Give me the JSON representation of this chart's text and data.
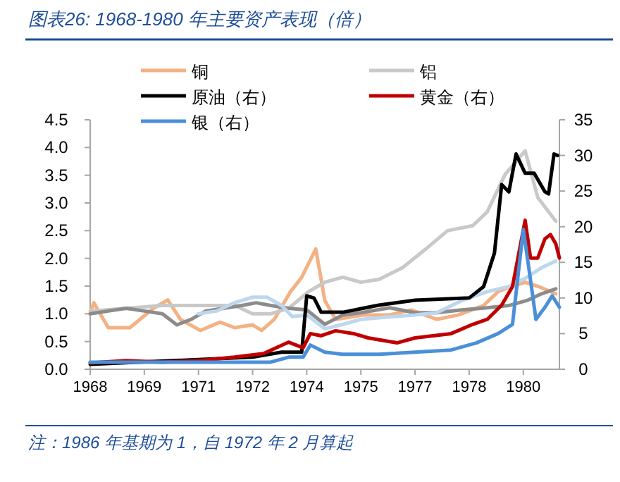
{
  "chart_data": {
    "type": "line",
    "title": "图表26:  1968-1980 年主要资产表现（倍）",
    "xlim": [
      1968,
      1981
    ],
    "xticks": [
      1968,
      {
        "value": 1969.5,
        "label": "1969"
      },
      1971,
      {
        "value": 1972.5,
        "label": "1972"
      },
      1974,
      {
        "value": 1975.5,
        "label": "1975"
      },
      1977,
      {
        "value": 1978.5,
        "label": "1978"
      },
      1980
    ],
    "ylim": [
      0,
      4.5
    ],
    "yticks": [
      {
        "value": 0,
        "label": "0.0"
      },
      0.5,
      {
        "value": 1,
        "label": "1.0"
      },
      1.5,
      {
        "value": 2,
        "label": "2.0"
      },
      2.5,
      {
        "value": 3,
        "label": "3.0"
      },
      3.5,
      {
        "value": 4,
        "label": "4.0"
      },
      4.5
    ],
    "y2lim": [
      0,
      35
    ],
    "y2ticks": [
      0,
      5,
      10,
      15,
      20,
      25,
      30,
      35
    ],
    "legend": "top",
    "series": [
      {
        "name": "铜",
        "color": "#f4b183",
        "x": [
          1968,
          1968.1,
          1968.5,
          1969.1,
          1969.75,
          1970.15,
          1970.5,
          1971.05,
          1971.6,
          1972,
          1972.5,
          1972.75,
          1973.1,
          1973.55,
          1973.86,
          1974.25,
          1974.5,
          1974.8,
          1975.6,
          1976.3,
          1976.9,
          1977.6,
          1978.2,
          1978.9,
          1979.3,
          1979.65,
          1980.05,
          1980.43,
          1980.9
        ],
        "values": [
          1.0,
          1.2,
          0.75,
          0.75,
          1.1,
          1.25,
          0.9,
          0.7,
          0.85,
          0.75,
          0.8,
          0.7,
          0.9,
          1.4,
          1.66,
          2.17,
          1.24,
          0.9,
          0.98,
          0.98,
          1.07,
          0.9,
          0.98,
          1.15,
          1.4,
          1.49,
          1.57,
          1.49,
          1.36
        ]
      },
      {
        "name": "铝",
        "color": "#c9c9c9",
        "x": [
          1968,
          1969,
          1970,
          1971,
          1972,
          1972.5,
          1973,
          1973.5,
          1974.05,
          1974.5,
          1975,
          1975.5,
          1976,
          1976.65,
          1977.3,
          1977.9,
          1978.6,
          1979,
          1979.5,
          1980.05,
          1980.4,
          1980.9
        ],
        "values": [
          1.05,
          1.1,
          1.15,
          1.15,
          1.15,
          1.0,
          1.0,
          1.1,
          1.4,
          1.57,
          1.66,
          1.57,
          1.62,
          1.83,
          2.17,
          2.5,
          2.59,
          2.84,
          3.52,
          3.94,
          3.1,
          2.67
        ]
      },
      {
        "color": "#8c8c8c",
        "x": [
          1968,
          1968.5,
          1969,
          1969.5,
          1970,
          1970.4,
          1970.8,
          1971.2,
          1971.7,
          1972.2,
          1972.6,
          1973,
          1973.5,
          1974,
          1974.5,
          1975,
          1975.5,
          1976.3,
          1977,
          1977.6,
          1978.3,
          1979,
          1979.6,
          1980.1,
          1980.5,
          1980.9
        ],
        "values": [
          1.0,
          1.05,
          1.1,
          1.05,
          1.0,
          0.8,
          0.9,
          1.05,
          1.1,
          1.15,
          1.2,
          1.15,
          1.1,
          1.07,
          0.81,
          0.98,
          1.02,
          1.11,
          1.02,
          1.02,
          1.07,
          1.11,
          1.15,
          1.24,
          1.36,
          1.45
        ]
      },
      {
        "color": "#bdd7ee",
        "x": [
          1971,
          1971.5,
          1972,
          1972.5,
          1972.9,
          1973.3,
          1973.6,
          1974,
          1974.5,
          1975,
          1975.5,
          1976.2,
          1977,
          1977.6,
          1978.3,
          1979,
          1979.6,
          1980.1,
          1980.5,
          1980.9
        ],
        "values": [
          1.0,
          1.05,
          1.2,
          1.3,
          1.3,
          1.15,
          0.95,
          0.98,
          0.73,
          0.81,
          0.9,
          0.94,
          0.98,
          1.02,
          1.24,
          1.4,
          1.49,
          1.66,
          1.83,
          1.95
        ]
      },
      {
        "name": "原油（右）",
        "color": "#000000",
        "axis": "y2",
        "x": [
          1968,
          1972.5,
          1973.3,
          1973.86,
          1974,
          1974.2,
          1974.4,
          1975,
          1976,
          1977,
          1978.5,
          1978.9,
          1979.2,
          1979.4,
          1979.6,
          1979.8,
          1980.05,
          1980.3,
          1980.6,
          1980.7,
          1980.85,
          1980.95
        ],
        "values": [
          0.7,
          1.7,
          2.4,
          2.4,
          10.3,
          10,
          8,
          8,
          9,
          9.7,
          10,
          11.6,
          16.3,
          25.9,
          24.9,
          30.2,
          27.5,
          27.5,
          24.9,
          24.6,
          30.2,
          30
        ]
      },
      {
        "name": "黄金（右）",
        "color": "#c00000",
        "axis": "y2",
        "x": [
          1968,
          1969,
          1970,
          1971,
          1972,
          1972.8,
          1973.5,
          1973.9,
          1974.1,
          1974.4,
          1974.8,
          1975.3,
          1975.7,
          1976.5,
          1977,
          1977.5,
          1978,
          1978.6,
          1979,
          1979.4,
          1979.7,
          1980.05,
          1980.2,
          1980.4,
          1980.6,
          1980.75,
          1980.9,
          1981
        ],
        "values": [
          0.9,
          1.2,
          1.0,
          1.2,
          1.7,
          2.2,
          3.8,
          3.0,
          5.0,
          4.7,
          5.4,
          5.0,
          4.4,
          3.7,
          4.4,
          4.7,
          5.0,
          6.3,
          7.0,
          9.0,
          11.6,
          20.9,
          15.6,
          15.6,
          18.3,
          18.9,
          17.6,
          15.6
        ]
      },
      {
        "name": "银（右）",
        "color": "#4a90d9",
        "axis": "y2",
        "x": [
          1968,
          1970,
          1972,
          1973,
          1973.5,
          1973.9,
          1974.1,
          1974.5,
          1975,
          1976,
          1977,
          1978,
          1978.7,
          1979.3,
          1979.7,
          1980,
          1980.15,
          1980.35,
          1980.6,
          1980.8,
          1981
        ],
        "values": [
          1.0,
          1.0,
          1.0,
          1.0,
          1.7,
          1.7,
          3.4,
          2.4,
          2.1,
          2.1,
          2.4,
          2.7,
          3.7,
          5.0,
          6.3,
          19.6,
          14.3,
          7.0,
          8.7,
          10.3,
          8.7
        ]
      }
    ],
    "annotations": [
      "注：1986 年基期为 1，自 1972 年 2 月算起"
    ]
  }
}
